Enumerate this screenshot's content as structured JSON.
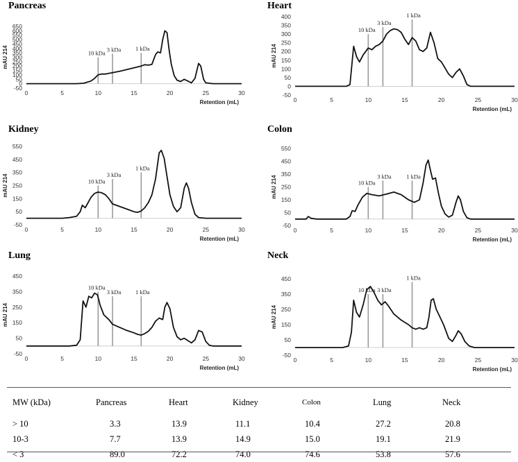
{
  "chart_data": [
    {
      "type": "line",
      "title": "Pancreas",
      "xlabel": "Retention (mL)",
      "ylabel": "mAU 214",
      "xlim": [
        0,
        30
      ],
      "ylim": [
        -50,
        650
      ],
      "xticks": [
        "0",
        "5",
        "10",
        "15",
        "20",
        "25",
        "30"
      ],
      "yticks": [
        "-50",
        "0",
        "50",
        "100",
        "150",
        "200",
        "250",
        "300",
        "350",
        "400",
        "450",
        "500",
        "550",
        "600",
        "650"
      ],
      "markers": [
        {
          "x": 10,
          "label": "10 kDa",
          "top": 300
        },
        {
          "x": 12,
          "label": "3 kDa",
          "top": 340
        },
        {
          "x": 16,
          "label": "1 kDa",
          "top": 350
        }
      ],
      "series": [
        {
          "name": "Pancreas",
          "x": [
            0,
            6,
            7,
            8,
            9,
            9.5,
            10,
            10.5,
            11,
            12,
            13,
            14,
            15,
            16,
            16.5,
            17,
            17.5,
            18,
            18.3,
            18.7,
            19,
            19.3,
            19.6,
            19.9,
            20.2,
            20.6,
            21,
            21.5,
            22,
            22.5,
            23,
            23.5,
            24,
            24.3,
            24.7,
            25,
            26,
            30
          ],
          "y": [
            0,
            0,
            0,
            5,
            30,
            60,
            100,
            110,
            110,
            125,
            140,
            160,
            180,
            200,
            215,
            210,
            220,
            330,
            360,
            350,
            500,
            600,
            580,
            380,
            220,
            90,
            40,
            25,
            50,
            30,
            10,
            60,
            230,
            200,
            50,
            10,
            0,
            0
          ]
        }
      ]
    },
    {
      "type": "line",
      "title": "Heart",
      "xlabel": "Retention (mL)",
      "ylabel": "mAU 214",
      "xlim": [
        0,
        30
      ],
      "ylim": [
        -50,
        400
      ],
      "xticks": [
        "0",
        "5",
        "10",
        "15",
        "20",
        "25",
        "30"
      ],
      "yticks": [
        "-50",
        "0",
        "50",
        "100",
        "150",
        "200",
        "250",
        "300",
        "350",
        "400"
      ],
      "markers": [
        {
          "x": 10,
          "label": "10 kDa",
          "top": 300
        },
        {
          "x": 12,
          "label": "3 kDa",
          "top": 340
        },
        {
          "x": 16,
          "label": "1 kDa",
          "top": 385
        }
      ],
      "series": [
        {
          "name": "Heart",
          "x": [
            0,
            6,
            7,
            7.5,
            8,
            8.4,
            8.8,
            9.3,
            10,
            10.5,
            11,
            11.5,
            12,
            12.5,
            13,
            13.5,
            14,
            14.5,
            15,
            15.5,
            16,
            16.5,
            17,
            17.5,
            18,
            18.5,
            19,
            19.5,
            20,
            21,
            21.5,
            22,
            22.5,
            23,
            23.5,
            24,
            30
          ],
          "y": [
            0,
            0,
            0,
            10,
            230,
            170,
            140,
            180,
            220,
            210,
            230,
            240,
            260,
            300,
            320,
            330,
            325,
            310,
            270,
            240,
            280,
            260,
            210,
            200,
            220,
            310,
            250,
            160,
            140,
            70,
            50,
            80,
            100,
            60,
            10,
            0,
            0
          ]
        }
      ]
    },
    {
      "type": "line",
      "title": "Kidney",
      "xlabel": "Retention (mL)",
      "ylabel": "mAU 214",
      "xlim": [
        0,
        30
      ],
      "ylim": [
        -50,
        550
      ],
      "xticks": [
        "0",
        "5",
        "10",
        "15",
        "20",
        "25",
        "30"
      ],
      "yticks": [
        "-50",
        "50",
        "150",
        "250",
        "350",
        "450",
        "550"
      ],
      "markers": [
        {
          "x": 10,
          "label": "10 kDa",
          "top": 250
        },
        {
          "x": 12,
          "label": "3 kDa",
          "top": 300
        },
        {
          "x": 16,
          "label": "1 kDa",
          "top": 350
        }
      ],
      "series": [
        {
          "name": "Kidney",
          "x": [
            0,
            5,
            6,
            7,
            7.5,
            7.8,
            8.2,
            8.6,
            9,
            9.5,
            10,
            10.5,
            11,
            11.5,
            12,
            13,
            14,
            15,
            15.5,
            16,
            16.5,
            17,
            17.5,
            18,
            18.5,
            18.8,
            19.2,
            19.6,
            20,
            20.5,
            21,
            21.5,
            22,
            22.3,
            22.6,
            23,
            23.5,
            24,
            25,
            30
          ],
          "y": [
            0,
            0,
            5,
            15,
            50,
            100,
            80,
            120,
            160,
            190,
            200,
            195,
            180,
            150,
            110,
            90,
            70,
            50,
            45,
            55,
            80,
            120,
            180,
            300,
            500,
            520,
            460,
            320,
            180,
            90,
            50,
            80,
            230,
            270,
            230,
            120,
            30,
            5,
            0,
            0
          ]
        }
      ]
    },
    {
      "type": "line",
      "title": "Colon",
      "xlabel": "Retention (mL)",
      "ylabel": "mAU 214",
      "xlim": [
        0,
        30
      ],
      "ylim": [
        -50,
        550
      ],
      "xticks": [
        "0",
        "5",
        "10",
        "15",
        "20",
        "25",
        "30"
      ],
      "yticks": [
        "-50",
        "50",
        "150",
        "250",
        "350",
        "450",
        "550"
      ],
      "markers": [
        {
          "x": 10,
          "label": "10 kDa",
          "top": 250
        },
        {
          "x": 12,
          "label": "3 kDa",
          "top": 300
        },
        {
          "x": 16,
          "label": "1 kDa",
          "top": 300
        }
      ],
      "series": [
        {
          "name": "Colon",
          "x": [
            0,
            1.5,
            1.8,
            2.2,
            3,
            7,
            7.5,
            7.8,
            8.2,
            8.6,
            9.2,
            9.8,
            10.5,
            11.5,
            12.5,
            13.5,
            14.5,
            15.5,
            16.3,
            17,
            17.5,
            17.9,
            18.2,
            18.5,
            18.8,
            19.2,
            19.6,
            20,
            20.5,
            21,
            21.5,
            22,
            22.3,
            22.6,
            23,
            23.5,
            24,
            30
          ],
          "y": [
            0,
            0,
            20,
            5,
            0,
            0,
            20,
            65,
            60,
            110,
            170,
            200,
            190,
            180,
            195,
            210,
            190,
            150,
            130,
            150,
            280,
            420,
            460,
            380,
            310,
            320,
            200,
            100,
            40,
            15,
            30,
            130,
            180,
            150,
            60,
            10,
            0,
            0
          ]
        }
      ]
    },
    {
      "type": "line",
      "title": "Lung",
      "xlabel": "Retention (mL)",
      "ylabel": "mAU 214",
      "xlim": [
        0,
        30
      ],
      "ylim": [
        -50,
        450
      ],
      "xticks": [
        "0",
        "5",
        "10",
        "15",
        "20",
        "25",
        "30"
      ],
      "yticks": [
        "-50",
        "50",
        "150",
        "250",
        "350",
        "450"
      ],
      "markers": [
        {
          "x": 10,
          "label": "10 kDa",
          "top": 350
        },
        {
          "x": 12,
          "label": "3 kDa",
          "top": 320
        },
        {
          "x": 16,
          "label": "1 kDa",
          "top": 320
        }
      ],
      "series": [
        {
          "name": "Lung",
          "x": [
            0,
            6,
            7,
            7.5,
            7.9,
            8.3,
            8.7,
            9.1,
            9.5,
            9.9,
            10.3,
            10.8,
            11.5,
            12,
            13,
            14,
            15,
            15.5,
            16,
            16.5,
            17,
            17.5,
            18,
            18.5,
            19,
            19.3,
            19.6,
            20,
            20.5,
            21,
            21.5,
            22,
            22.5,
            23,
            23.5,
            24,
            24.5,
            25,
            25.5,
            26,
            30
          ],
          "y": [
            0,
            0,
            5,
            40,
            290,
            250,
            320,
            310,
            340,
            330,
            260,
            200,
            170,
            140,
            120,
            100,
            85,
            75,
            70,
            80,
            95,
            120,
            160,
            180,
            170,
            250,
            280,
            240,
            120,
            60,
            40,
            50,
            35,
            20,
            40,
            100,
            90,
            30,
            5,
            0,
            0
          ]
        }
      ]
    },
    {
      "type": "line",
      "title": "Neck",
      "xlabel": "Retention (mL)",
      "ylabel": "mAU 214",
      "xlim": [
        0,
        30
      ],
      "ylim": [
        -50,
        450
      ],
      "xticks": [
        "0",
        "5",
        "10",
        "15",
        "20",
        "25",
        "30"
      ],
      "yticks": [
        "-50",
        "50",
        "150",
        "250",
        "350",
        "450"
      ],
      "markers": [
        {
          "x": 10,
          "label": "10 kDa",
          "top": 350
        },
        {
          "x": 12,
          "label": "3 kDa",
          "top": 350
        },
        {
          "x": 16,
          "label": "1 kDa",
          "top": 430
        }
      ],
      "series": [
        {
          "name": "Neck",
          "x": [
            0,
            6.5,
            7.3,
            7.7,
            8,
            8.4,
            8.8,
            9.3,
            9.8,
            10.3,
            10.8,
            11.3,
            11.8,
            12.3,
            12.8,
            13.5,
            14.5,
            15.5,
            16,
            16.5,
            17,
            17.5,
            18,
            18.3,
            18.6,
            18.9,
            19.3,
            19.8,
            20.3,
            21,
            21.5,
            22,
            22.3,
            22.7,
            23.2,
            23.8,
            24.5,
            30
          ],
          "y": [
            0,
            0,
            10,
            100,
            310,
            230,
            200,
            280,
            380,
            400,
            360,
            310,
            280,
            300,
            270,
            220,
            180,
            150,
            130,
            120,
            130,
            120,
            130,
            200,
            310,
            320,
            250,
            200,
            150,
            60,
            40,
            80,
            110,
            90,
            40,
            10,
            0,
            0
          ]
        }
      ]
    }
  ],
  "table": {
    "headers": [
      "MW (kDa)",
      "Pancreas",
      "Heart",
      "Kidney",
      "Colon",
      "Lung",
      "Neck"
    ],
    "rows": [
      [
        "> 10",
        "3.3",
        "13.9",
        "11.1",
        "10.4",
        "27.2",
        "20.8"
      ],
      [
        "10-3",
        "7.7",
        "13.9",
        "14.9",
        "15.0",
        "19.1",
        "21.9"
      ],
      [
        "< 3",
        "89.0",
        "72.2",
        "74.0",
        "74.6",
        "53.8",
        "57.6"
      ]
    ]
  }
}
